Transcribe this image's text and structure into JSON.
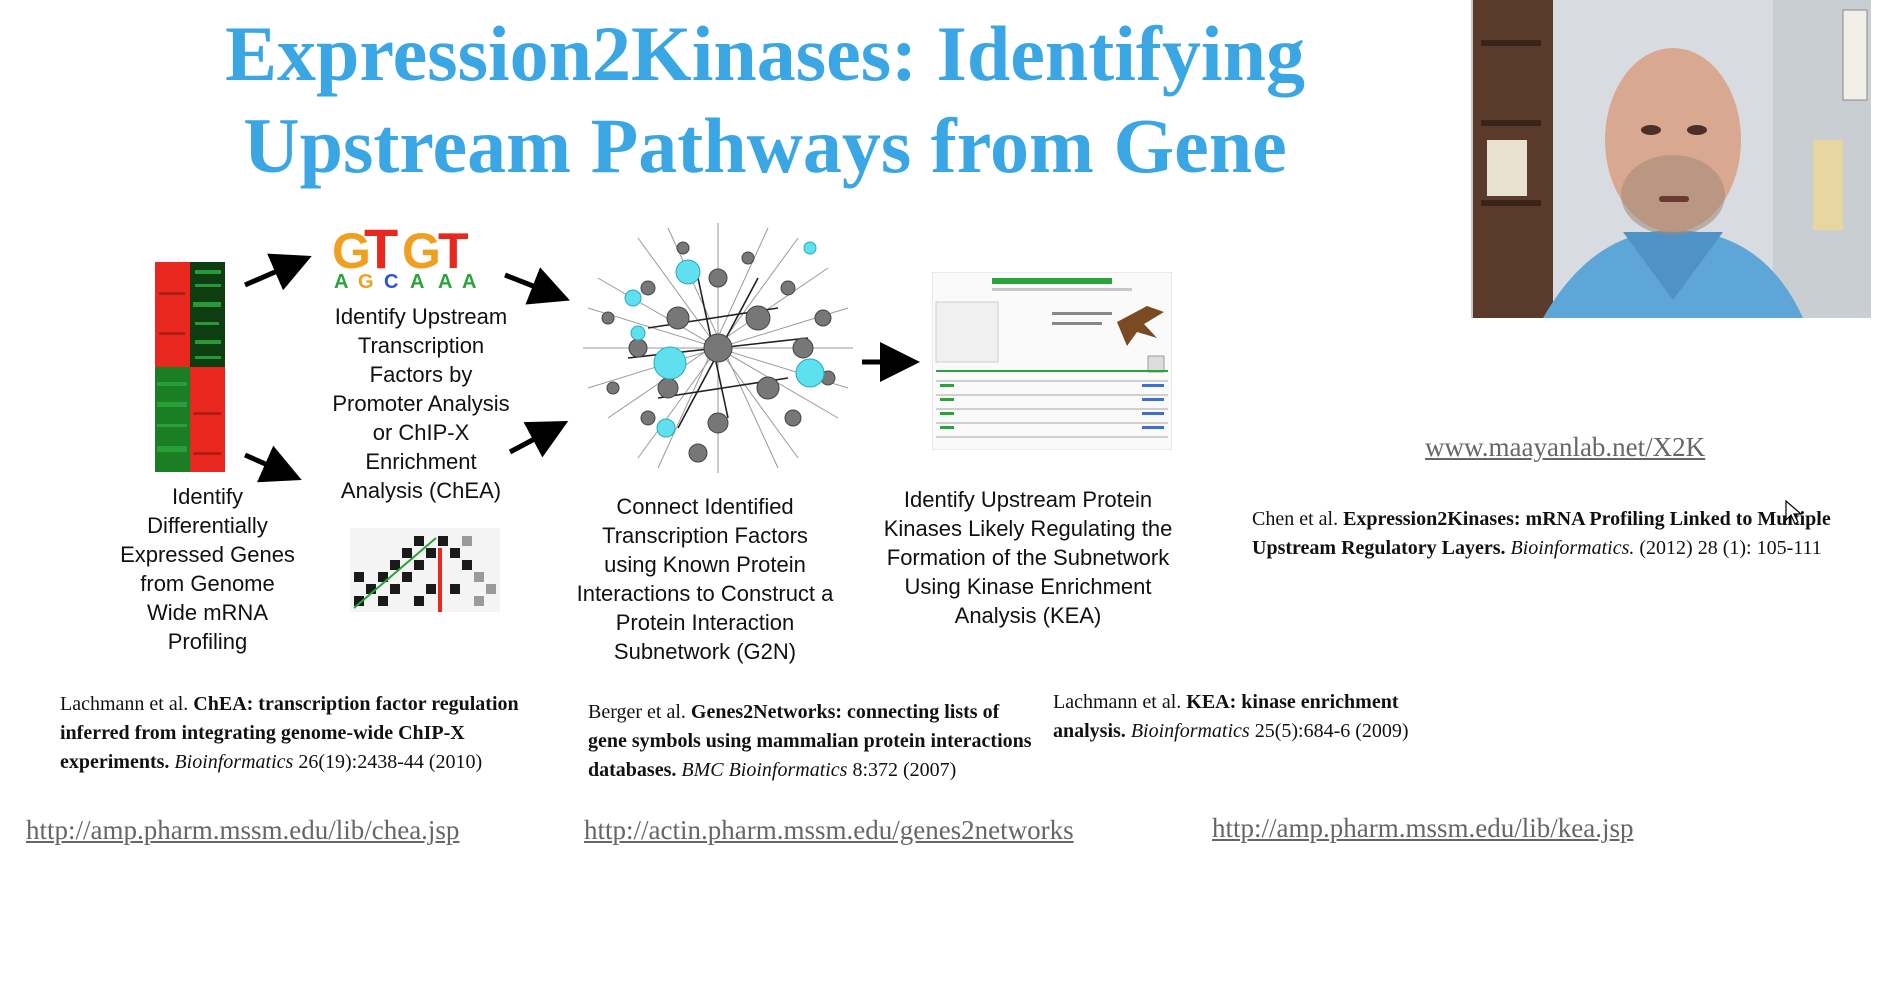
{
  "slide": {
    "title_line1": "Expression2Kinases: Identifying",
    "title_line2": "Upstream Pathways from Gene",
    "captions": {
      "step1": [
        "Identify",
        "Differentially",
        "Expressed Genes",
        "from Genome",
        "Wide mRNA",
        "Profiling"
      ],
      "step2": [
        "Identify Upstream",
        "Transcription",
        "Factors by",
        "Promoter Analysis",
        "or ChIP-X",
        "Enrichment",
        "Analysis (ChEA)"
      ],
      "step3": [
        "Connect Identified",
        "Transcription Factors",
        "using Known Protein",
        "Interactions to Construct a",
        "Protein Interaction",
        "Subnetwork (G2N)"
      ],
      "step4": [
        "Identify Upstream Protein",
        "Kinases Likely Regulating the",
        "Formation of the Subnetwork",
        "Using Kinase Enrichment",
        "Analysis (KEA)"
      ]
    },
    "logo_text": {
      "top": "GT GT",
      "bottom": "AGCAA"
    },
    "x2k_url": "www.maayanlab.net/X2K",
    "x2k_ref": {
      "authors": "Chen et al.",
      "title": "Expression2Kinases: mRNA Profiling Linked to Multiple Upstream Regulatory Layers.",
      "journal": "Bioinformatics.",
      "year": "(2012)",
      "volume": "28 (1): 105-111"
    },
    "refs": [
      {
        "authors": "Lachmann  et al.",
        "title": "ChEA:  transcription factor regulation inferred from integrating genome-wide ChIP-X experiments.",
        "journal": "Bioinformatics",
        "citation": "26(19):2438-44 (2010)",
        "url": "http://amp.pharm.mssm.edu/lib/chea.jsp"
      },
      {
        "authors": "Berger et al.",
        "title": "Genes2Networks: connecting lists of gene symbols using mammalian protein interactions databases.",
        "journal": "BMC Bioinformatics",
        "citation": "8:372 (2007)",
        "url": "http://actin.pharm.mssm.edu/genes2networks"
      },
      {
        "authors": "Lachmann  et al.",
        "title": "KEA:  kinase enrichment analysis.",
        "journal": "Bioinformatics",
        "citation": "25(5):684-6 (2009)",
        "url": "http://amp.pharm.mssm.edu/lib/kea.jsp"
      }
    ]
  },
  "colors": {
    "title": "#3aa6e3",
    "heatmap_red": "#e8281e",
    "heatmap_green": "#2aa33a",
    "network_highlight": "#5fe0ef",
    "link": "#666666"
  },
  "icons": [
    "arrow-icon",
    "cursor-icon"
  ]
}
